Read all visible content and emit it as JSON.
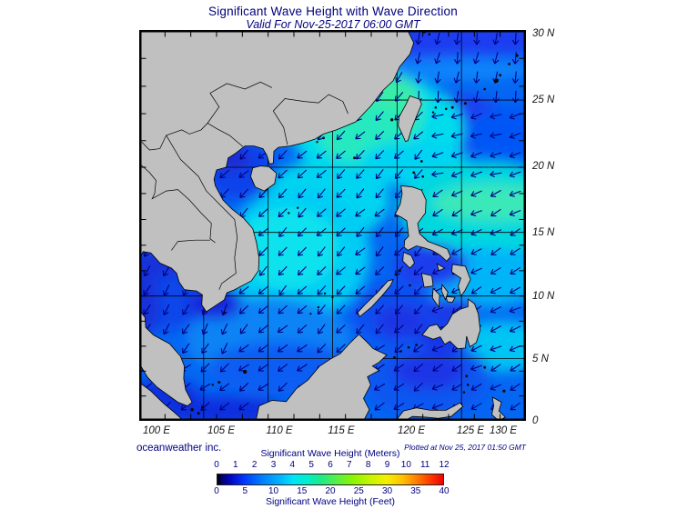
{
  "title": "Significant Wave Height with Wave Direction",
  "subtitle": "Valid For Nov-25-2017 06:00 GMT",
  "branding": "oceanweather inc.",
  "plotted_at": "Plotted at Nov 25, 2017 01:50 GMT",
  "map": {
    "lon_tick_labels": [
      "100 E",
      "105 E",
      "110 E",
      "115 E",
      "120 E",
      "125 E",
      "130 E"
    ],
    "lat_tick_labels": [
      "30 N",
      "25 N",
      "20 N",
      "15 N",
      "10 N",
      "5 N",
      "0"
    ],
    "extent": {
      "lon_min": 100,
      "lon_max": 130,
      "lat_min": 0,
      "lat_max": 30
    },
    "grid_interval_deg": 5,
    "projection": "mercator"
  },
  "colorbar": {
    "meters_label": "Significant Wave Height (Meters)",
    "feet_label": "Significant Wave Height (Feet)",
    "meters_ticks": [
      "0",
      "1",
      "2",
      "3",
      "4",
      "5",
      "6",
      "7",
      "8",
      "9",
      "10",
      "11",
      "12"
    ],
    "feet_ticks": [
      "0",
      "5",
      "10",
      "15",
      "20",
      "25",
      "30",
      "35",
      "40"
    ],
    "gradient": [
      [
        0,
        "#000000"
      ],
      [
        0.02,
        "#00006e"
      ],
      [
        0.06,
        "#0008c8"
      ],
      [
        0.12,
        "#0038ff"
      ],
      [
        0.2,
        "#0080ff"
      ],
      [
        0.28,
        "#00b4ff"
      ],
      [
        0.335,
        "#00e4f8"
      ],
      [
        0.4,
        "#00eec8"
      ],
      [
        0.46,
        "#20ea86"
      ],
      [
        0.52,
        "#50ee50"
      ],
      [
        0.6,
        "#8cf400"
      ],
      [
        0.68,
        "#c8f400"
      ],
      [
        0.75,
        "#f4f000"
      ],
      [
        0.82,
        "#ffc000"
      ],
      [
        0.88,
        "#ff8000"
      ],
      [
        0.94,
        "#ff3c00"
      ],
      [
        1,
        "#f00000"
      ]
    ]
  },
  "colors": {
    "heading": "#00007d",
    "annotation": "#000080",
    "land": "#c0c0c0",
    "arrow": "#000080",
    "base_sea": "#0566f2"
  }
}
